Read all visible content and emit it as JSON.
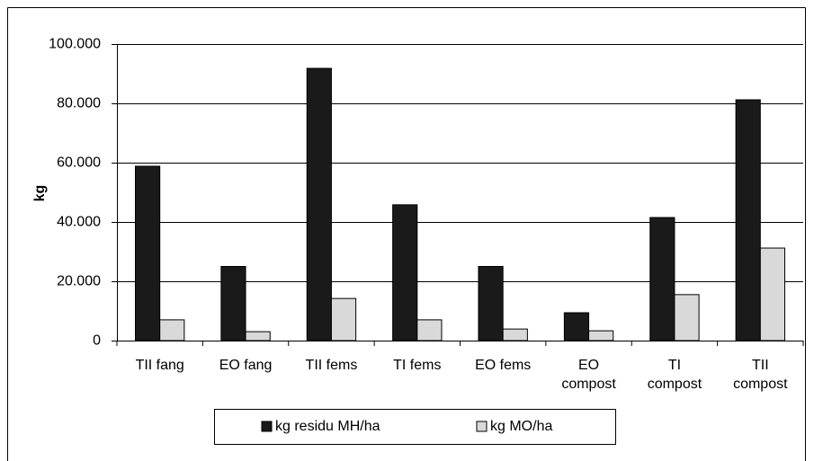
{
  "chart_data": {
    "type": "bar",
    "y_label": "kg",
    "categories": [
      "TII fang",
      "EO fang",
      "TII fems",
      "TI fems",
      "EO fems",
      "EO compost",
      "TI compost",
      "TII compost"
    ],
    "series": [
      {
        "name": "kg residu MH/ha",
        "color": "#1a1a1a",
        "values": [
          58800,
          25000,
          91800,
          45800,
          25000,
          9400,
          41500,
          81200
        ]
      },
      {
        "name": "kg MO/ha",
        "color": "#d9d9d9",
        "values": [
          7000,
          3000,
          14200,
          7000,
          3900,
          3300,
          15500,
          31200
        ]
      }
    ],
    "ylim": [
      0,
      100000
    ],
    "yticks": [
      0,
      {
        "value": 20000,
        "label": "20.000"
      },
      {
        "value": 40000,
        "label": "40.000"
      },
      {
        "value": 60000,
        "label": "60.000"
      },
      {
        "value": 80000,
        "label": "80.000"
      },
      {
        "value": 100000,
        "label": "100.000"
      }
    ],
    "grid": true,
    "legend": "bottom"
  }
}
